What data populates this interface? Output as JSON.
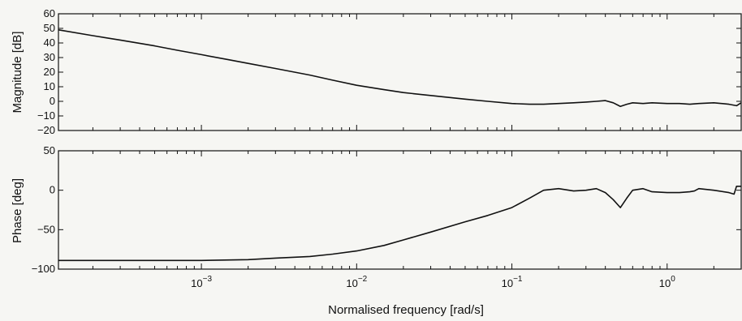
{
  "chart_data": [
    {
      "type": "line",
      "title": "",
      "ylabel": "Magnitude [dB]",
      "xlabel": "",
      "xscale": "log",
      "xlim": [
        0.00012,
        3.0
      ],
      "ylim": [
        -20,
        60
      ],
      "grid": false,
      "yticks": [
        -20,
        -10,
        0,
        10,
        20,
        30,
        40,
        50,
        60
      ],
      "ytick_labels": [
        "−20",
        "−10",
        "0",
        "10",
        "20",
        "30",
        "40",
        "50",
        "60"
      ],
      "xticks": [
        0.001,
        0.01,
        0.1,
        1
      ],
      "series": [
        {
          "x": [
            0.00012,
            0.0002,
            0.0003,
            0.0005,
            0.0007,
            0.001,
            0.0015,
            0.002,
            0.003,
            0.005,
            0.007,
            0.01,
            0.015,
            0.02,
            0.03,
            0.05,
            0.07,
            0.1,
            0.13,
            0.16,
            0.2,
            0.25,
            0.3,
            0.35,
            0.4,
            0.45,
            0.5,
            0.55,
            0.6,
            0.7,
            0.8,
            1.0,
            1.2,
            1.4,
            1.6,
            2.0,
            2.5,
            2.8,
            3.0
          ],
          "y": [
            49,
            45,
            42,
            38,
            35,
            32,
            28.5,
            26,
            22.5,
            18,
            14.5,
            11,
            8,
            6,
            4,
            1.5,
            0,
            -1.5,
            -2,
            -2,
            -1.5,
            -1,
            -0.5,
            0,
            0.5,
            -1,
            -3.5,
            -2,
            -1,
            -1.5,
            -1,
            -1.5,
            -1.5,
            -2,
            -1.5,
            -1,
            -2,
            -3,
            -1
          ]
        }
      ]
    },
    {
      "type": "line",
      "title": "",
      "ylabel": "Phase [deg]",
      "xlabel": "Normalised frequency [rad/s]",
      "xscale": "log",
      "xlim": [
        0.00012,
        3.0
      ],
      "ylim": [
        -100,
        50
      ],
      "grid": false,
      "yticks": [
        -100,
        -50,
        0,
        50
      ],
      "ytick_labels": [
        "−100",
        "−50",
        "0",
        "50"
      ],
      "xticks": [
        0.001,
        0.01,
        0.1,
        1
      ],
      "xtick_bases": [
        "10",
        "10",
        "10",
        "10"
      ],
      "xtick_exponents": [
        "−3",
        "−2",
        "−1",
        "0"
      ],
      "series": [
        {
          "x": [
            0.00012,
            0.0005,
            0.001,
            0.002,
            0.003,
            0.005,
            0.007,
            0.01,
            0.015,
            0.02,
            0.03,
            0.05,
            0.07,
            0.1,
            0.13,
            0.16,
            0.2,
            0.25,
            0.3,
            0.35,
            0.4,
            0.45,
            0.5,
            0.55,
            0.6,
            0.7,
            0.8,
            1.0,
            1.2,
            1.4,
            1.5,
            1.6,
            2.0,
            2.5,
            2.7,
            2.8,
            3.0
          ],
          "y": [
            -89,
            -89,
            -89,
            -88,
            -86,
            -84,
            -81,
            -77,
            -70,
            -63,
            -53,
            -40,
            -32,
            -22,
            -10,
            0,
            2,
            -1,
            0,
            2,
            -3,
            -12,
            -22,
            -10,
            0,
            2,
            -2,
            -3,
            -3,
            -2,
            -1,
            2,
            0,
            -3,
            -5,
            5,
            5
          ]
        }
      ]
    }
  ]
}
